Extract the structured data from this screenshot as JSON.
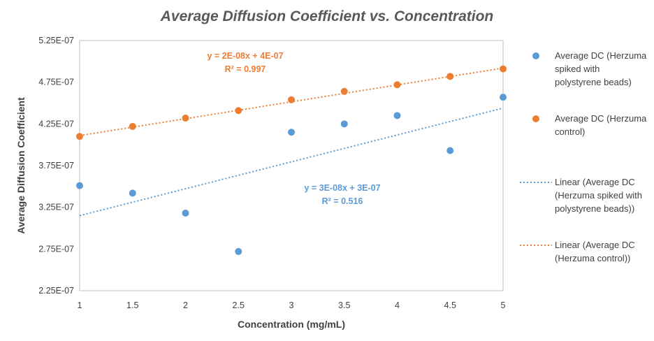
{
  "chart_data": {
    "type": "scatter",
    "title": "Average Diffusion Coefficient vs. Concentration",
    "xlabel": "Concentration (mg/mL)",
    "ylabel": "Average Diffusion Coefficient",
    "xlim": [
      1,
      5
    ],
    "ylim": [
      2.25e-07,
      5.25e-07
    ],
    "x_ticks": [
      1,
      1.5,
      2,
      2.5,
      3,
      3.5,
      4,
      4.5,
      5
    ],
    "x_tick_labels": [
      "1",
      "1.5",
      "2",
      "2.5",
      "3",
      "3.5",
      "4",
      "4.5",
      "5"
    ],
    "y_ticks": [
      2.25e-07,
      2.75e-07,
      3.25e-07,
      3.75e-07,
      4.25e-07,
      4.75e-07,
      5.25e-07
    ],
    "y_tick_labels": [
      "2.25E-07",
      "2.75E-07",
      "3.25E-07",
      "3.75E-07",
      "4.25E-07",
      "4.75E-07",
      "5.25E-07"
    ],
    "grid": false,
    "legend_position": "right",
    "series": [
      {
        "name": "Average DC (Herzuma spiked with polystyrene beads)",
        "legend_lines": [
          "Average DC (Herzuma",
          "spiked with",
          "polystyrene beads)"
        ],
        "color": "#5b9bd5",
        "x": [
          1,
          1.5,
          2,
          2.5,
          3,
          3.5,
          4,
          4.5,
          5
        ],
        "y": [
          3.51e-07,
          3.42e-07,
          3.18e-07,
          2.72e-07,
          4.15e-07,
          4.25e-07,
          4.35e-07,
          3.93e-07,
          4.57e-07
        ],
        "trendline": {
          "legend_lines": [
            "Linear (Average DC",
            "(Herzuma spiked with",
            "polystyrene beads))"
          ],
          "equation": "y = 3E-08x + 3E-07",
          "r2": "R² = 0.516",
          "y_start": 3.15e-07,
          "y_end": 4.44e-07
        }
      },
      {
        "name": "Average DC (Herzuma control)",
        "legend_lines": [
          "Average DC (Herzuma",
          "control)"
        ],
        "color": "#ed7d31",
        "x": [
          1,
          1.5,
          2,
          2.5,
          3,
          3.5,
          4,
          4.5,
          5
        ],
        "y": [
          4.1e-07,
          4.22e-07,
          4.32e-07,
          4.41e-07,
          4.54e-07,
          4.64e-07,
          4.72e-07,
          4.82e-07,
          4.91e-07
        ],
        "trendline": {
          "legend_lines": [
            "Linear (Average DC",
            "(Herzuma control))"
          ],
          "equation": "y = 2E-08x + 4E-07",
          "r2": "R² = 0.997",
          "y_start": 4.11e-07,
          "y_end": 4.92e-07
        }
      }
    ]
  }
}
